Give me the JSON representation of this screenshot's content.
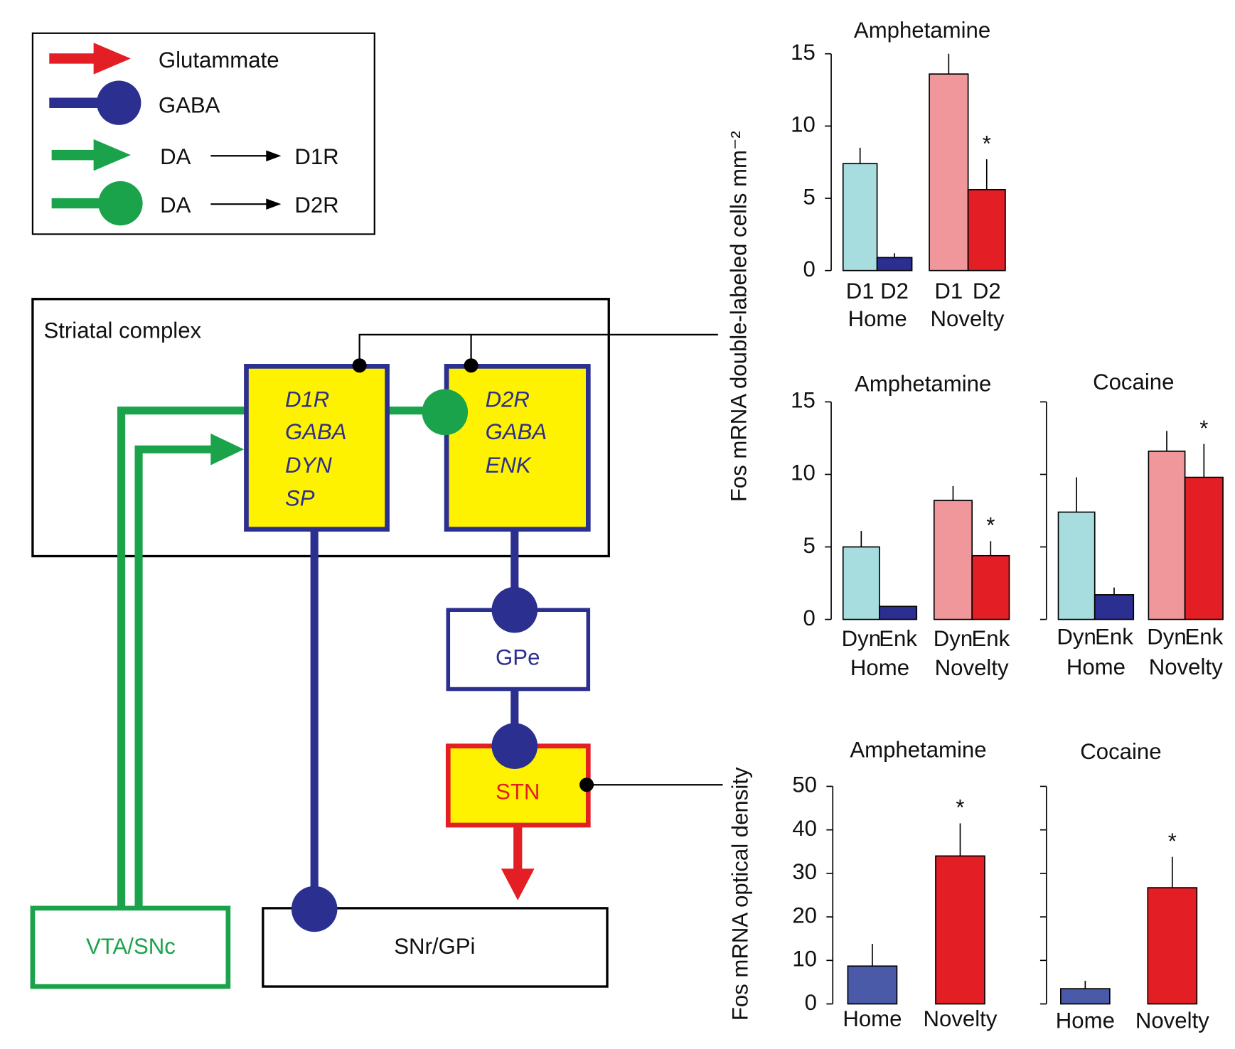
{
  "diagram": {
    "legend": {
      "glutamate": "Glutammate",
      "gaba": "GABA",
      "da1": {
        "from": "DA",
        "to": "D1R"
      },
      "da2": {
        "from": "DA",
        "to": "D2R"
      }
    },
    "striatum": {
      "label": "Striatal complex",
      "d1": [
        "D1R",
        "GABA",
        "DYN",
        "SP"
      ],
      "d2": [
        "D2R",
        "GABA",
        "ENK"
      ]
    },
    "gpe": "GPe",
    "stn": "STN",
    "vta": "VTA/SNc",
    "snr": "SNr/GPi"
  },
  "chart_data": [
    {
      "type": "bar",
      "title": "Amphetamine",
      "ylabel": "Fos mRNA double-labeled cells mm⁻²",
      "categories": [
        "D1",
        "D2",
        "D1",
        "D2"
      ],
      "groups": [
        "Home",
        "Novelty"
      ],
      "values": [
        7.4,
        0.9,
        13.6,
        5.6
      ],
      "errors": [
        1.1,
        0.3,
        1.4,
        2.1
      ],
      "markers": [
        null,
        null,
        null,
        "*"
      ],
      "colors": [
        "#a8dde0",
        "#2b2f8f",
        "#f0979b",
        "#e31e24"
      ],
      "ylim": [
        0,
        15
      ],
      "yticks": [
        0,
        5,
        10,
        15
      ],
      "tick_labels": true
    },
    {
      "type": "bar",
      "title": "Amphetamine",
      "categories": [
        "Dyn",
        "Enk",
        "Dyn",
        "Enk"
      ],
      "groups": [
        "Home",
        "Novelty"
      ],
      "values": [
        5.0,
        0.9,
        8.2,
        4.4
      ],
      "errors": [
        1.1,
        0,
        1.0,
        1.0
      ],
      "markers": [
        null,
        null,
        null,
        "*"
      ],
      "colors": [
        "#a8dde0",
        "#2b2f8f",
        "#f0979b",
        "#e31e24"
      ],
      "ylim": [
        0,
        15
      ],
      "yticks": [
        0,
        5,
        10,
        15
      ],
      "tick_labels": true
    },
    {
      "type": "bar",
      "title": "Cocaine",
      "categories": [
        "Dyn",
        "Enk",
        "Dyn",
        "Enk"
      ],
      "groups": [
        "Home",
        "Novelty"
      ],
      "values": [
        7.4,
        1.7,
        11.6,
        9.8
      ],
      "errors": [
        2.4,
        0.5,
        1.4,
        2.3
      ],
      "markers": [
        null,
        null,
        null,
        "*"
      ],
      "colors": [
        "#a8dde0",
        "#2b2f8f",
        "#f0979b",
        "#e31e24"
      ],
      "ylim": [
        0,
        15
      ],
      "yticks": [
        0,
        5,
        10,
        15
      ],
      "tick_labels": false
    },
    {
      "type": "bar",
      "title": "Amphetamine",
      "ylabel": "Fos mRNA optical density",
      "categories": [
        "Home",
        "Novelty"
      ],
      "values": [
        8.7,
        34.0
      ],
      "errors": [
        5.1,
        7.5
      ],
      "markers": [
        null,
        "*"
      ],
      "colors": [
        "#4a5aa8",
        "#e31e24"
      ],
      "ylim": [
        0,
        50
      ],
      "yticks": [
        0,
        10,
        20,
        30,
        40,
        50
      ],
      "tick_labels": true
    },
    {
      "type": "bar",
      "title": "Cocaine",
      "categories": [
        "Home",
        "Novelty"
      ],
      "values": [
        3.5,
        26.7
      ],
      "errors": [
        1.8,
        7.1
      ],
      "markers": [
        null,
        "*"
      ],
      "colors": [
        "#4a5aa8",
        "#e31e24"
      ],
      "ylim": [
        0,
        50
      ],
      "yticks": [
        0,
        10,
        20,
        30,
        40,
        50
      ],
      "tick_labels": false
    }
  ]
}
